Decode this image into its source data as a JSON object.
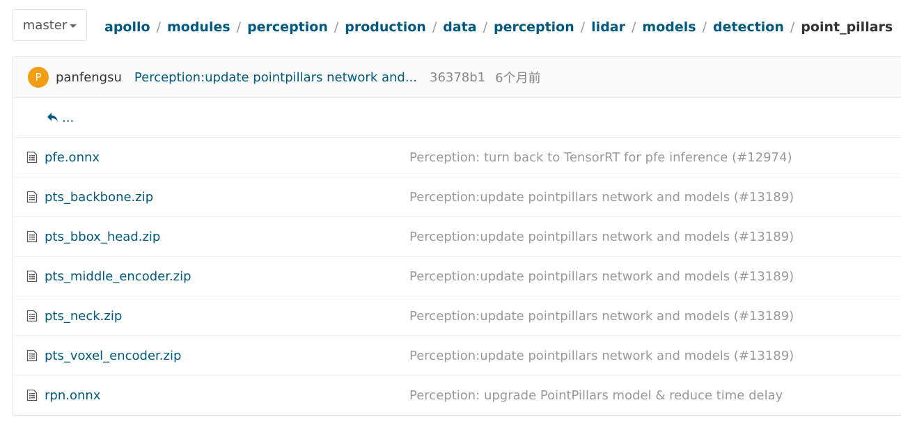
{
  "branch": {
    "label": "master"
  },
  "breadcrumb": [
    "apollo",
    "modules",
    "perception",
    "production",
    "data",
    "perception",
    "lidar",
    "models",
    "detection",
    "point_pillars"
  ],
  "commit": {
    "avatar_letter": "P",
    "author": "panfengsu",
    "message": "Perception:update pointpillars network and...",
    "sha": "36378b1",
    "time": "6个月前"
  },
  "parent": {
    "label": "..."
  },
  "files": [
    {
      "name": "pfe.onnx",
      "message": "Perception: turn back to TensorRT for pfe inference (#12974)"
    },
    {
      "name": "pts_backbone.zip",
      "message": "Perception:update pointpillars network and models (#13189)"
    },
    {
      "name": "pts_bbox_head.zip",
      "message": "Perception:update pointpillars network and models (#13189)"
    },
    {
      "name": "pts_middle_encoder.zip",
      "message": "Perception:update pointpillars network and models (#13189)"
    },
    {
      "name": "pts_neck.zip",
      "message": "Perception:update pointpillars network and models (#13189)"
    },
    {
      "name": "pts_voxel_encoder.zip",
      "message": "Perception:update pointpillars network and models (#13189)"
    },
    {
      "name": "rpn.onnx",
      "message": "Perception: upgrade PointPillars model & reduce time delay"
    }
  ]
}
